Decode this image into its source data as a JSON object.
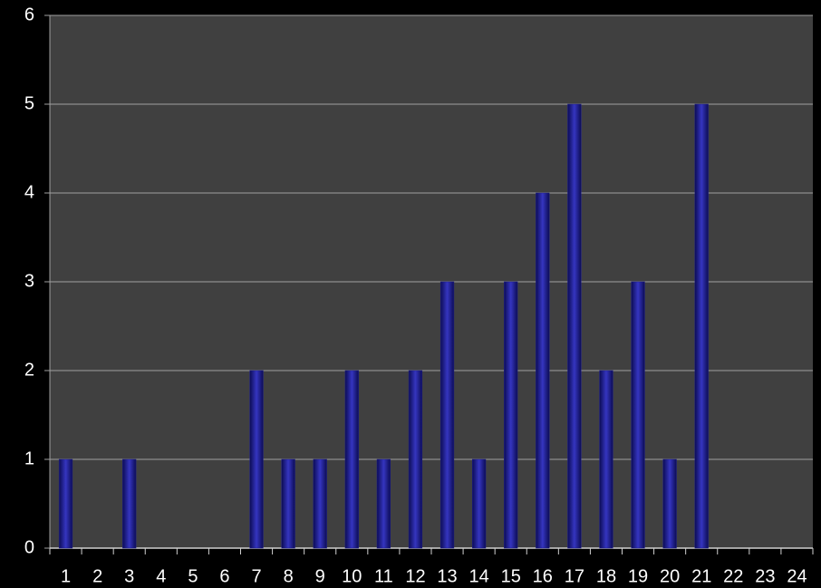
{
  "chart_data": {
    "type": "bar",
    "categories": [
      "1",
      "2",
      "3",
      "4",
      "5",
      "6",
      "7",
      "8",
      "9",
      "10",
      "11",
      "12",
      "13",
      "14",
      "15",
      "16",
      "17",
      "18",
      "19",
      "20",
      "21",
      "22",
      "23",
      "24"
    ],
    "values": [
      1,
      0,
      1,
      0,
      0,
      0,
      2,
      1,
      1,
      2,
      1,
      2,
      3,
      1,
      3,
      4,
      5,
      2,
      3,
      1,
      5,
      0,
      0,
      0
    ],
    "color": "#1f1f8f",
    "ylim": [
      0,
      6
    ],
    "yticks": [
      0,
      1,
      2,
      3,
      4,
      5,
      6
    ],
    "grid": true
  }
}
